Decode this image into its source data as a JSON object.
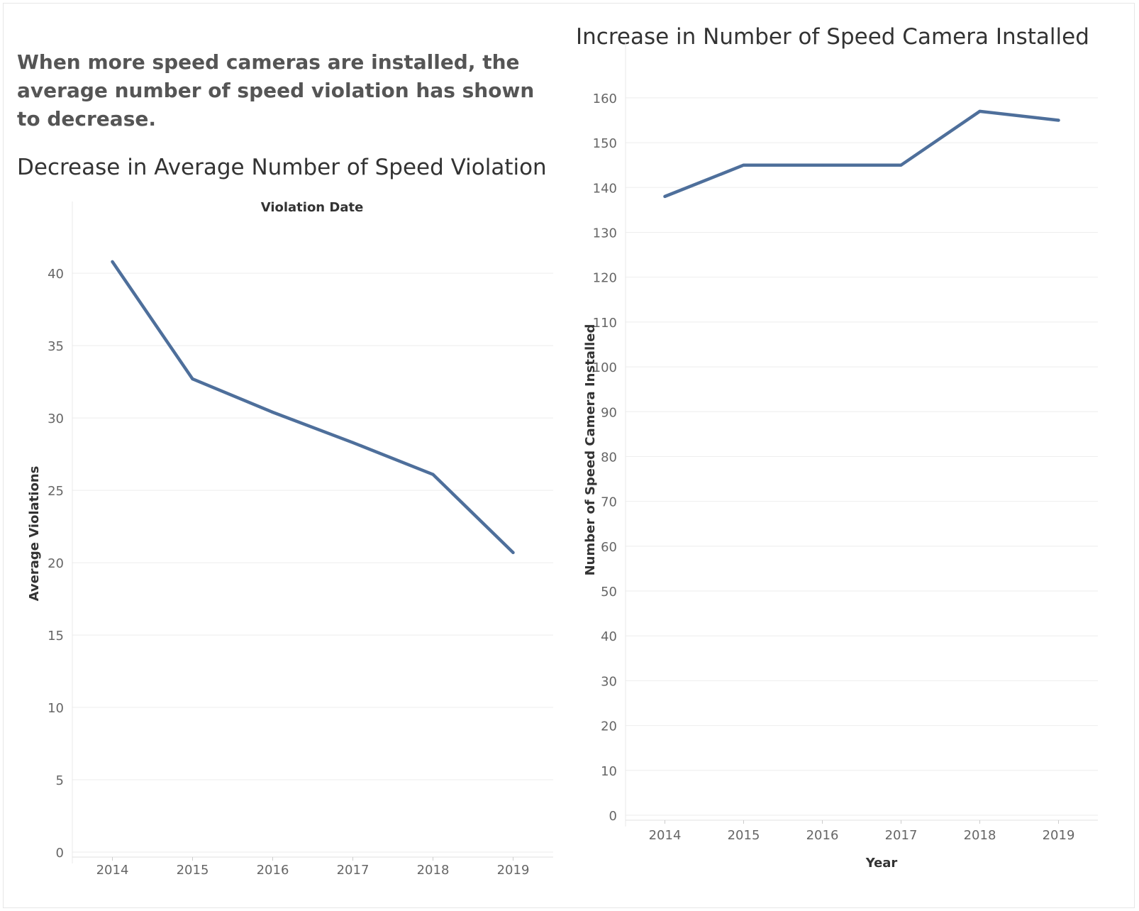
{
  "headline": "When more speed cameras are installed, the average number of speed violation has shown to decrease.",
  "colors": {
    "line": "#4e6f9b",
    "grid": "#eeeeee",
    "tick_text": "#666666",
    "axis_label": "#333333"
  },
  "chart_data": [
    {
      "type": "line",
      "title": "Decrease in Average Number of Speed Violation",
      "xlabel": "Violation Date",
      "xlabel_position": "top",
      "ylabel": "Average Violations",
      "x": [
        "2014",
        "2015",
        "2016",
        "2017",
        "2018",
        "2019"
      ],
      "series": [
        {
          "values": [
            40.8,
            32.7,
            30.4,
            28.3,
            26.1,
            20.7
          ]
        }
      ],
      "yticks": [
        0,
        5,
        10,
        15,
        20,
        25,
        30,
        35,
        40
      ],
      "ylim": [
        0,
        43
      ],
      "grid": true
    },
    {
      "type": "line",
      "title": "Increase in Number of Speed Camera Installed",
      "xlabel": "Year",
      "xlabel_position": "bottom",
      "ylabel": "Number of Speed Camera Installed",
      "x": [
        "2014",
        "2015",
        "2016",
        "2017",
        "2018",
        "2019"
      ],
      "series": [
        {
          "values": [
            138,
            145,
            145,
            145,
            157,
            155
          ]
        }
      ],
      "yticks": [
        0,
        10,
        20,
        30,
        40,
        50,
        60,
        70,
        80,
        90,
        100,
        110,
        120,
        130,
        140,
        150,
        160
      ],
      "ylim": [
        0,
        166
      ],
      "grid": true
    }
  ]
}
